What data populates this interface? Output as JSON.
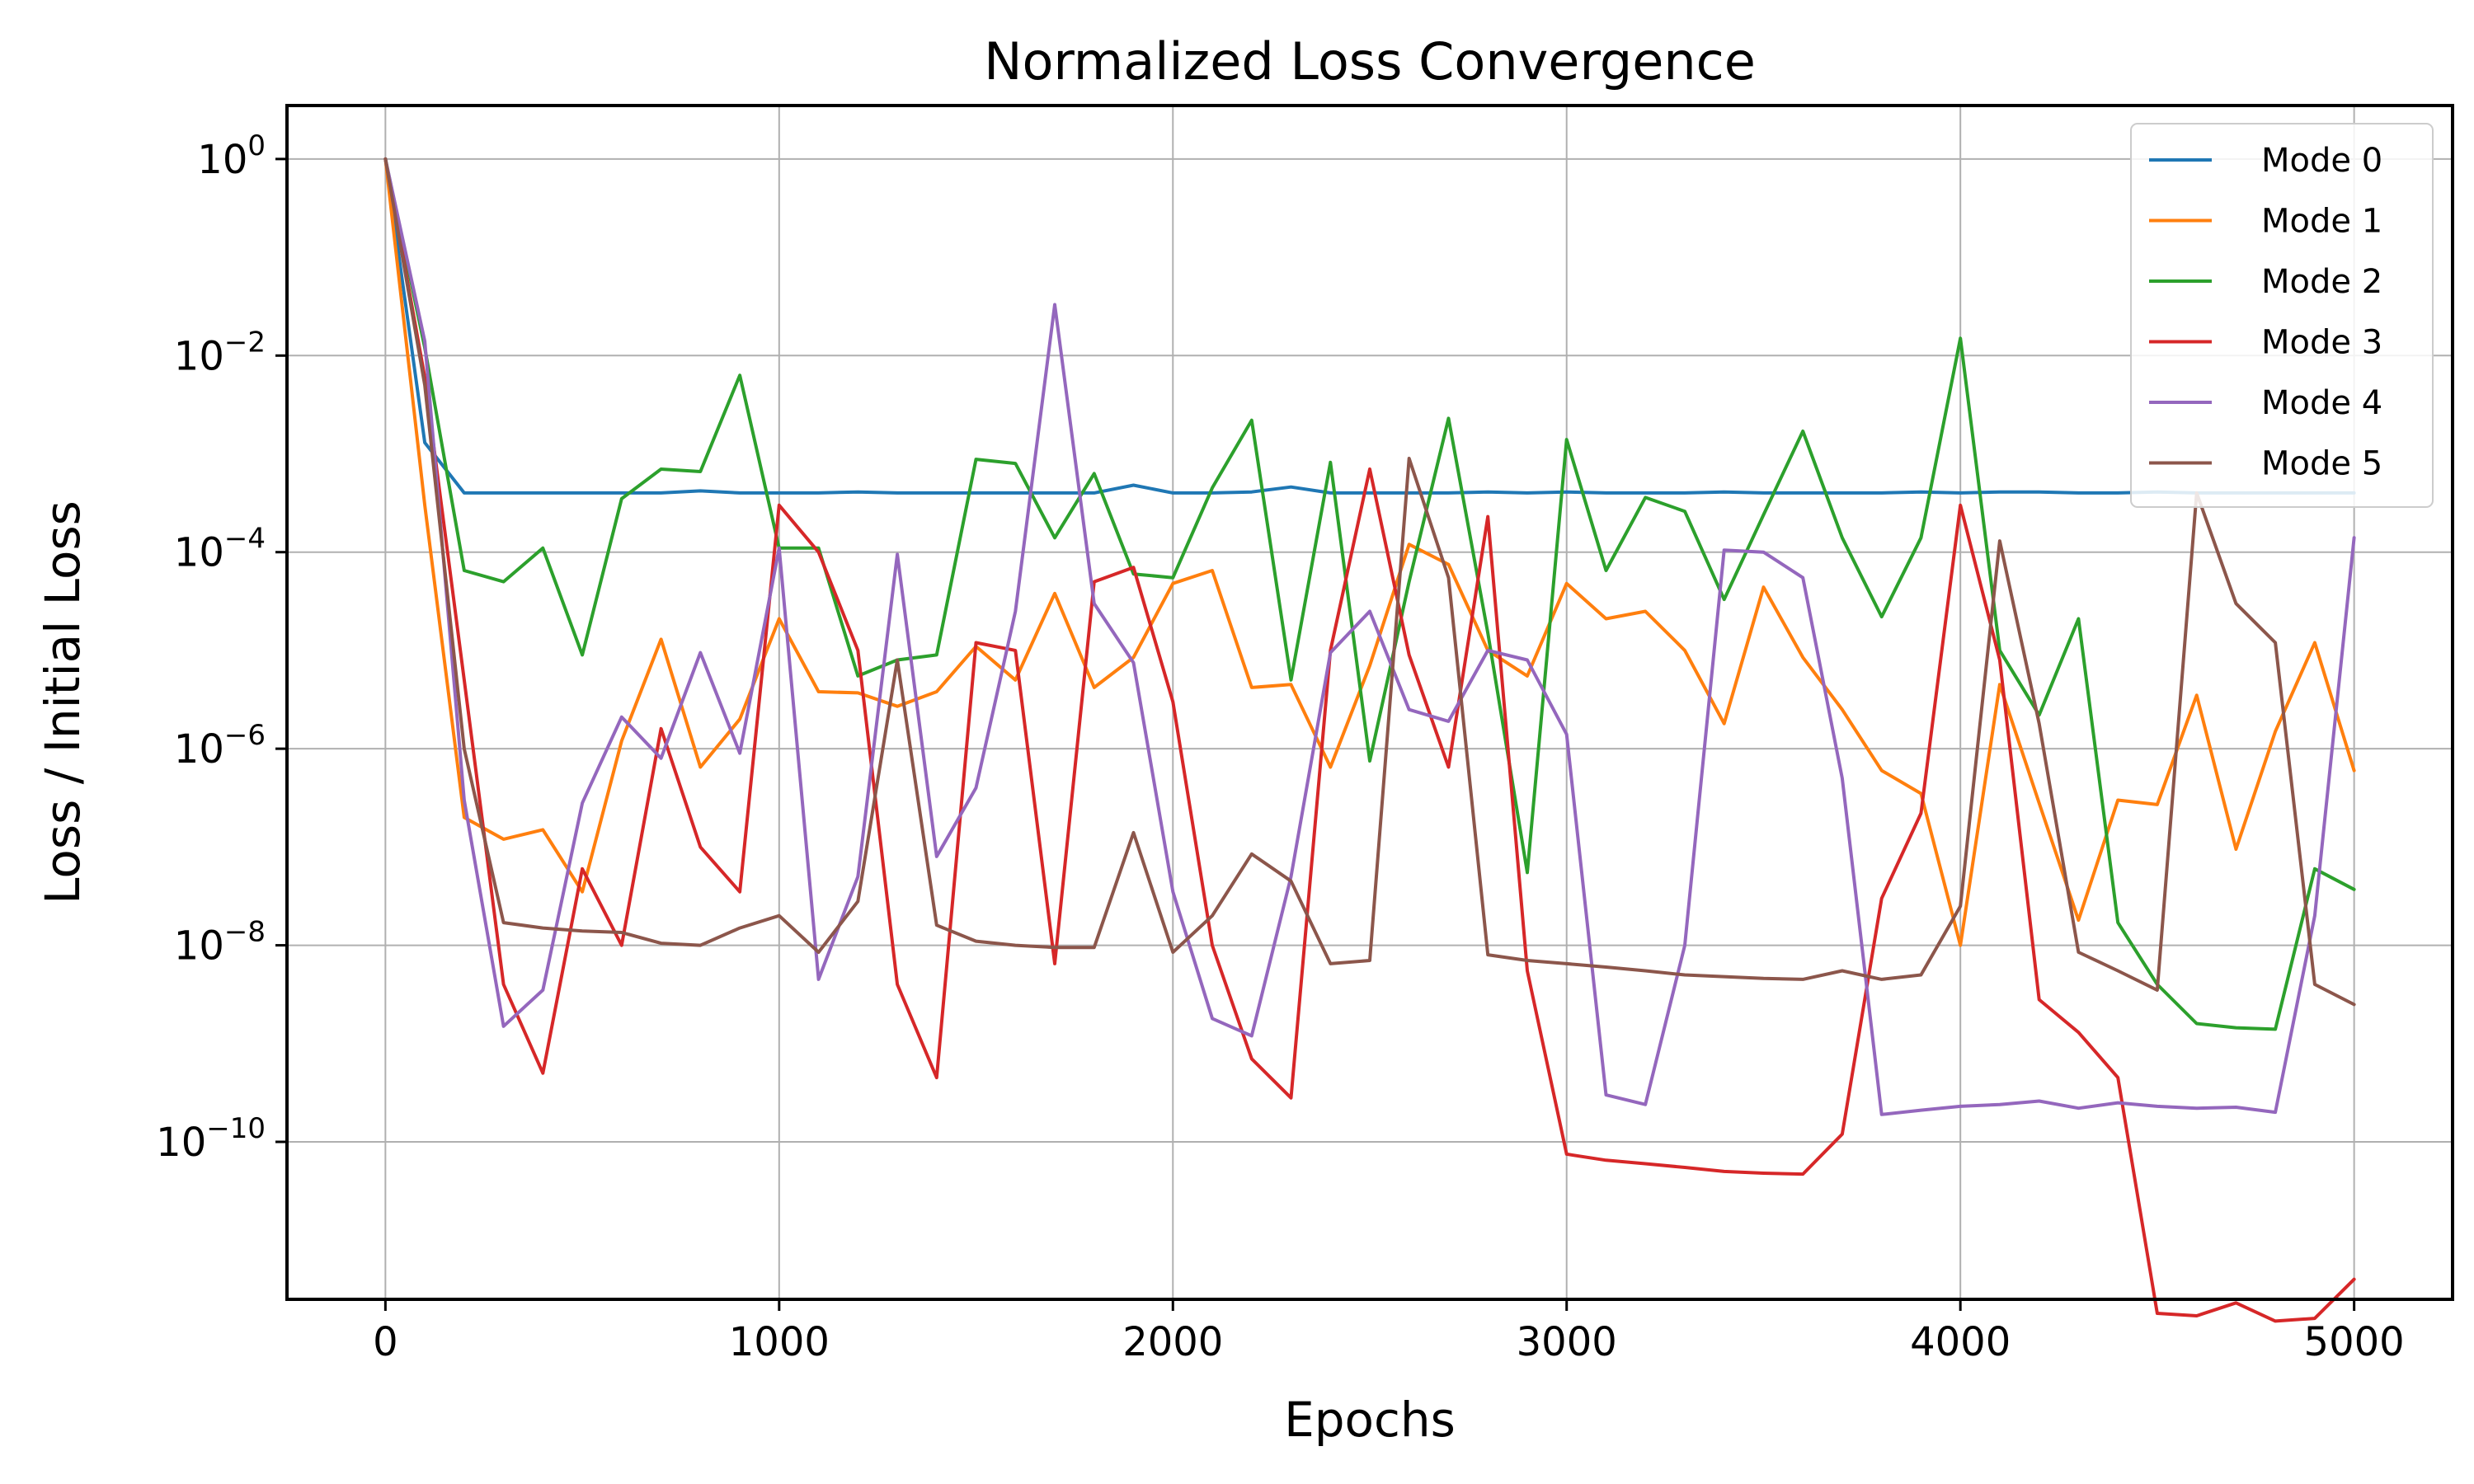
{
  "chart_data": {
    "type": "line",
    "title": "Normalized Loss Convergence",
    "xlabel": "Epochs",
    "ylabel": "Loss / Initial Loss",
    "xlim": [
      -250,
      5250
    ],
    "ylim": [
      2.5e-12,
      3.5
    ],
    "yscale": "log",
    "grid": true,
    "legend_position": "top-right",
    "x_ticks": [
      0,
      1000,
      2000,
      3000,
      4000,
      5000
    ],
    "x_tick_labels": [
      "0",
      "1000",
      "2000",
      "3000",
      "4000",
      "5000"
    ],
    "y_ticks": [
      {
        "value": 1,
        "base": "10",
        "exp": "0"
      },
      {
        "value": 0.01,
        "base": "10",
        "exp": "−2"
      },
      {
        "value": 0.0001,
        "base": "10",
        "exp": "−4"
      },
      {
        "value": 1e-06,
        "base": "10",
        "exp": "−6"
      },
      {
        "value": 1e-08,
        "base": "10",
        "exp": "−8"
      },
      {
        "value": 1e-10,
        "base": "10",
        "exp": "−10"
      }
    ],
    "x": [
      0,
      100,
      200,
      300,
      400,
      500,
      600,
      700,
      800,
      900,
      1000,
      1100,
      1200,
      1300,
      1400,
      1500,
      1600,
      1700,
      1800,
      1900,
      2000,
      2100,
      2200,
      2300,
      2400,
      2500,
      2600,
      2700,
      2800,
      2900,
      3000,
      3100,
      3200,
      3300,
      3400,
      3500,
      3600,
      3700,
      3800,
      3900,
      4000,
      4100,
      4200,
      4300,
      4400,
      4500,
      4600,
      4700,
      4800,
      4900,
      5000
    ],
    "series": [
      {
        "name": "Mode 0",
        "color": "#1f77b4",
        "values": [
          1,
          0.0013,
          0.0004,
          0.0004,
          0.0004,
          0.0004,
          0.0004,
          0.0004,
          0.00042,
          0.0004,
          0.0004,
          0.0004,
          0.00041,
          0.0004,
          0.0004,
          0.0004,
          0.0004,
          0.0004,
          0.0004,
          0.00048,
          0.0004,
          0.0004,
          0.00041,
          0.00046,
          0.0004,
          0.0004,
          0.0004,
          0.0004,
          0.00041,
          0.0004,
          0.00041,
          0.0004,
          0.0004,
          0.0004,
          0.00041,
          0.0004,
          0.0004,
          0.0004,
          0.0004,
          0.00041,
          0.0004,
          0.00041,
          0.00041,
          0.0004,
          0.0004,
          0.00041,
          0.0004,
          0.0004,
          0.0004,
          0.0004,
          0.0004
        ]
      },
      {
        "name": "Mode 1",
        "color": "#ff7f0e",
        "values": [
          1,
          0.0003,
          2e-07,
          1.2e-07,
          1.5e-07,
          3.5e-08,
          1.2e-06,
          1.3e-05,
          6.5e-07,
          2e-06,
          2.1e-05,
          3.8e-06,
          3.7e-06,
          2.7e-06,
          3.8e-06,
          1.1e-05,
          5e-06,
          3.8e-05,
          4.2e-06,
          8.5e-06,
          4.8e-05,
          6.5e-05,
          4.2e-06,
          4.5e-06,
          6.5e-07,
          7e-06,
          0.00012,
          7.5e-05,
          1e-05,
          5.5e-06,
          4.8e-05,
          2.1e-05,
          2.5e-05,
          1e-05,
          1.8e-06,
          4.4e-05,
          8.5e-06,
          2.5e-06,
          6e-07,
          3.5e-07,
          1e-08,
          4.5e-06,
          2.8e-07,
          1.8e-08,
          3e-07,
          2.7e-07,
          3.5e-06,
          9.5e-08,
          1.5e-06,
          1.2e-05,
          6e-07
        ]
      },
      {
        "name": "Mode 2",
        "color": "#2ca02c",
        "values": [
          1,
          0.012,
          6.5e-05,
          5e-05,
          0.00011,
          9e-06,
          0.00035,
          0.0007,
          0.00066,
          0.0063,
          0.00011,
          0.00011,
          5.5e-06,
          8e-06,
          9e-06,
          0.00088,
          0.0008,
          0.00014,
          0.00063,
          6e-05,
          5.5e-05,
          0.00045,
          0.0022,
          5e-06,
          0.00082,
          7.5e-07,
          5e-05,
          0.0023,
          1.5e-05,
          5.5e-08,
          0.0014,
          6.5e-05,
          0.00036,
          0.00026,
          3.3e-05,
          0.00024,
          0.0017,
          0.00014,
          2.2e-05,
          0.00014,
          0.015,
          1e-05,
          2.2e-06,
          2.1e-05,
          1.7e-08,
          4e-09,
          1.6e-09,
          1.45e-09,
          1.4e-09,
          6e-08,
          3.7e-08
        ]
      },
      {
        "name": "Mode 3",
        "color": "#d62728",
        "values": [
          1,
          0.006,
          5e-06,
          4e-09,
          5e-10,
          6e-08,
          1e-08,
          1.6e-06,
          1e-07,
          3.5e-08,
          0.0003,
          0.0001,
          1e-05,
          4e-09,
          4.5e-10,
          1.2e-05,
          1e-05,
          6.5e-09,
          5e-05,
          7e-05,
          3e-06,
          1e-08,
          7e-10,
          2.8e-10,
          1e-05,
          0.0007,
          9e-06,
          6.5e-07,
          0.00023,
          5.5e-09,
          7.5e-11,
          6.5e-11,
          6e-11,
          5.5e-11,
          5e-11,
          4.8e-11,
          4.7e-11,
          1.2e-10,
          3e-08,
          2.2e-07,
          0.0003,
          8e-06,
          2.8e-09,
          1.3e-09,
          4.5e-10,
          1.8e-12,
          1.7e-12,
          2.3e-12,
          1.5e-12,
          1.6e-12,
          4e-12
        ]
      },
      {
        "name": "Mode 4",
        "color": "#9467bd",
        "values": [
          1,
          0.014,
          3e-07,
          1.5e-09,
          3.5e-09,
          2.8e-07,
          2.1e-06,
          8e-07,
          9.5e-06,
          9e-07,
          0.00011,
          4.5e-09,
          5e-08,
          9.5e-05,
          8e-08,
          4e-07,
          2.5e-05,
          0.033,
          3e-05,
          7.5e-06,
          3.5e-08,
          1.8e-09,
          1.2e-09,
          5e-08,
          9.5e-06,
          2.5e-05,
          2.5e-06,
          1.9e-06,
          1e-05,
          8e-06,
          1.4e-06,
          3e-10,
          2.4e-10,
          1e-08,
          0.000105,
          0.0001,
          5.5e-05,
          5e-07,
          1.9e-10,
          2.1e-10,
          2.3e-10,
          2.4e-10,
          2.6e-10,
          2.2e-10,
          2.5e-10,
          2.3e-10,
          2.2e-10,
          2.25e-10,
          2e-10,
          2e-08,
          0.00014
        ]
      },
      {
        "name": "Mode 5",
        "color": "#8c564b",
        "values": [
          1,
          0.005,
          1e-06,
          1.7e-08,
          1.5e-08,
          1.4e-08,
          1.35e-08,
          1.05e-08,
          1e-08,
          1.5e-08,
          2e-08,
          8.5e-09,
          2.8e-08,
          8e-06,
          1.6e-08,
          1.1e-08,
          1e-08,
          9.5e-09,
          9.5e-09,
          1.4e-07,
          8.5e-09,
          2e-08,
          8.5e-08,
          4.5e-08,
          6.5e-09,
          7e-09,
          0.0009,
          5.5e-05,
          8e-09,
          7e-09,
          6.5e-09,
          6e-09,
          5.5e-09,
          5e-09,
          4.8e-09,
          4.6e-09,
          4.5e-09,
          5.5e-09,
          4.5e-09,
          5e-09,
          2.5e-08,
          0.00013,
          1.8e-06,
          8.5e-09,
          5.5e-09,
          3.5e-09,
          0.0004,
          3e-05,
          1.2e-05,
          4e-09,
          2.5e-09
        ]
      }
    ]
  }
}
